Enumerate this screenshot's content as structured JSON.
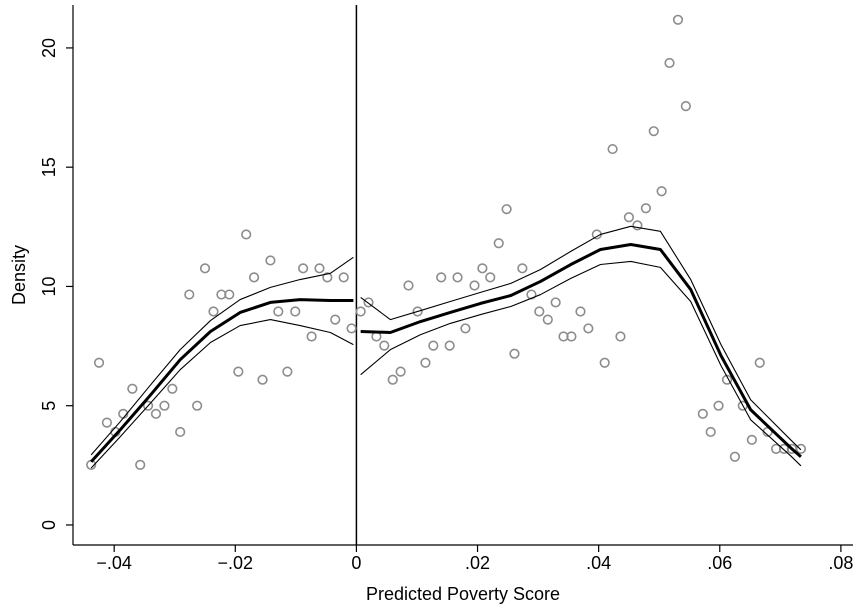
{
  "chart_data": {
    "type": "scatter",
    "x_label": "Predicted Poverty Score",
    "y_label": "Density",
    "xlim": [
      -0.0468,
      0.082
    ],
    "ylim": [
      -0.84,
      21.8
    ],
    "xticks": [
      {
        "value": -0.04,
        "label": "−.04"
      },
      {
        "value": -0.02,
        "label": "−.02"
      },
      0,
      {
        "value": 0.02,
        "label": ".02"
      },
      {
        "value": 0.04,
        "label": ".04"
      },
      {
        "value": 0.06,
        "label": ".06"
      },
      {
        "value": 0.08,
        "label": ".08"
      }
    ],
    "yticks": [
      0,
      5,
      10,
      15,
      20
    ],
    "vline": 0,
    "series": [
      {
        "type": "scatter",
        "color": "#8c8c8c",
        "x": [
          -0.0438,
          -0.0425,
          -0.0412,
          -0.0398,
          -0.0385,
          -0.037,
          -0.0357,
          -0.0344,
          -0.0331,
          -0.0317,
          -0.0304,
          -0.0291,
          -0.0276,
          -0.0263,
          -0.025,
          -0.0236,
          -0.0223,
          -0.021,
          -0.0195,
          -0.0182,
          -0.0169,
          -0.0155,
          -0.0142,
          -0.0129,
          -0.0114,
          -0.0101,
          -0.0088,
          -0.0074,
          -0.0061,
          -0.0048,
          -0.0035,
          -0.0021,
          -0.0008,
          0.0007,
          0.002,
          0.0033,
          0.0046,
          0.006,
          0.0073,
          0.0086,
          0.0101,
          0.0114,
          0.0127,
          0.014,
          0.0154,
          0.0167,
          0.018,
          0.0195,
          0.0208,
          0.0221,
          0.0235,
          0.0248,
          0.0261,
          0.0274,
          0.0289,
          0.0302,
          0.0316,
          0.0329,
          0.0342,
          0.0355,
          0.037,
          0.0383,
          0.0397,
          0.041,
          0.0423,
          0.0436,
          0.045,
          0.0464,
          0.0478,
          0.0491,
          0.0504,
          0.0517,
          0.0531,
          0.0544,
          0.0572,
          0.0585,
          0.0598,
          0.0612,
          0.0625,
          0.0638,
          0.0653,
          0.0666,
          0.0679,
          0.0693,
          0.0706,
          0.0719,
          0.0734
        ],
        "y": [
          2.52,
          6.8,
          4.29,
          3.9,
          4.66,
          5.71,
          2.52,
          5.0,
          4.66,
          5.0,
          5.71,
          3.9,
          9.66,
          5.0,
          10.76,
          8.95,
          9.66,
          9.66,
          6.43,
          12.18,
          10.38,
          6.09,
          11.09,
          8.95,
          6.43,
          8.95,
          10.76,
          7.9,
          10.76,
          10.38,
          8.61,
          10.38,
          8.24,
          8.95,
          9.33,
          7.9,
          7.52,
          6.09,
          6.43,
          10.04,
          8.95,
          6.8,
          7.52,
          10.38,
          7.52,
          10.38,
          8.24,
          10.04,
          10.76,
          10.38,
          11.81,
          13.24,
          7.18,
          10.76,
          9.66,
          8.95,
          8.61,
          9.33,
          7.9,
          7.9,
          8.95,
          8.24,
          12.18,
          6.8,
          15.76,
          7.9,
          12.9,
          12.56,
          13.28,
          16.51,
          13.99,
          19.37,
          21.18,
          17.56,
          4.66,
          3.9,
          5.0,
          6.09,
          2.86,
          5.0,
          3.57,
          6.8,
          3.9,
          3.19,
          3.19,
          3.19,
          3.19
        ]
      },
      {
        "type": "line",
        "style": "thick",
        "color": "#000000",
        "x": [
          -0.0438,
          -0.039,
          -0.0341,
          -0.0291,
          -0.0241,
          -0.0192,
          -0.0142,
          -0.0093,
          -0.0043,
          -0.0005
        ],
        "y": [
          2.65,
          3.99,
          5.42,
          6.93,
          8.11,
          8.91,
          9.33,
          9.45,
          9.41,
          9.41
        ]
      },
      {
        "type": "line",
        "style": "thin",
        "color": "#000000",
        "x": [
          -0.0438,
          -0.039,
          -0.0341,
          -0.0291,
          -0.0241,
          -0.0192,
          -0.0142,
          -0.0093,
          -0.0043,
          -0.0005
        ],
        "y": [
          2.94,
          4.33,
          5.84,
          7.35,
          8.57,
          9.45,
          9.96,
          10.29,
          10.55,
          11.22
        ]
      },
      {
        "type": "line",
        "style": "thin",
        "color": "#000000",
        "x": [
          -0.0438,
          -0.039,
          -0.0341,
          -0.0291,
          -0.0241,
          -0.0192,
          -0.0142,
          -0.0093,
          -0.0043,
          -0.0005
        ],
        "y": [
          2.39,
          3.7,
          5.08,
          6.51,
          7.65,
          8.36,
          8.61,
          8.36,
          8.07,
          7.56
        ]
      },
      {
        "type": "line",
        "style": "thick",
        "color": "#000000",
        "x": [
          0.0007,
          0.0056,
          0.0106,
          0.0155,
          0.0205,
          0.0255,
          0.0304,
          0.0354,
          0.0403,
          0.0453,
          0.0502,
          0.0552,
          0.0602,
          0.0651,
          0.0717,
          0.0734
        ],
        "y": [
          8.11,
          8.07,
          8.53,
          8.91,
          9.29,
          9.62,
          10.21,
          10.92,
          11.55,
          11.76,
          11.55,
          9.87,
          7.1,
          4.83,
          3.24,
          2.86
        ]
      },
      {
        "type": "line",
        "style": "thin",
        "color": "#000000",
        "x": [
          0.0007,
          0.0056,
          0.0106,
          0.0155,
          0.0205,
          0.0255,
          0.0304,
          0.0354,
          0.0403,
          0.0453,
          0.0502,
          0.0552,
          0.0602,
          0.0651,
          0.0717,
          0.0734
        ],
        "y": [
          9.54,
          8.61,
          8.99,
          9.37,
          9.75,
          10.13,
          10.71,
          11.47,
          12.18,
          12.52,
          12.31,
          10.29,
          7.56,
          5.25,
          3.57,
          3.15
        ]
      },
      {
        "type": "line",
        "style": "thin",
        "color": "#000000",
        "x": [
          0.0007,
          0.0056,
          0.0106,
          0.0155,
          0.0205,
          0.0255,
          0.0304,
          0.0354,
          0.0403,
          0.0453,
          0.0502,
          0.0552,
          0.0602,
          0.0651,
          0.0717,
          0.0734
        ],
        "y": [
          6.3,
          7.35,
          7.98,
          8.45,
          8.82,
          9.16,
          9.66,
          10.34,
          10.92,
          11.05,
          10.8,
          9.37,
          6.68,
          4.41,
          2.9,
          2.48
        ]
      }
    ]
  }
}
